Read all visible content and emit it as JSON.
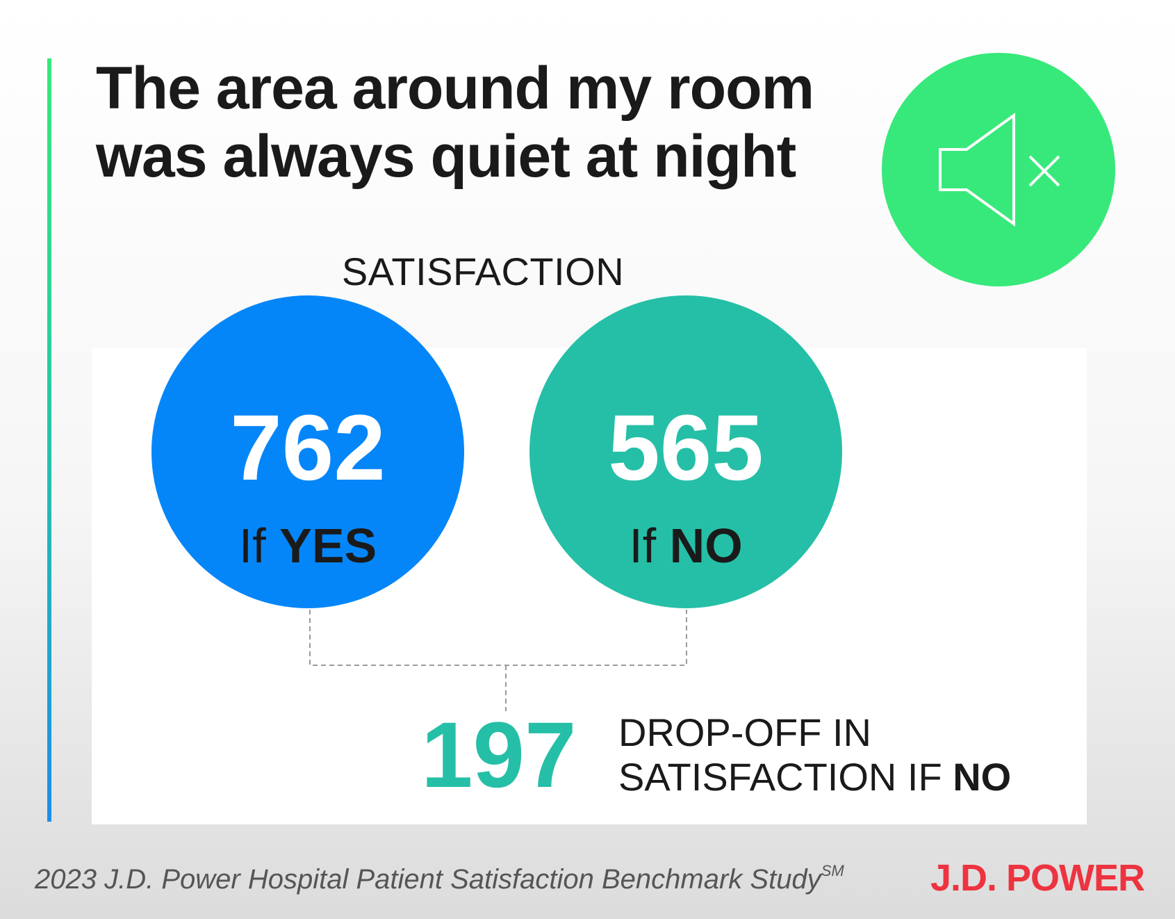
{
  "headline": {
    "line1": "The area around my room",
    "line2": "was always quiet at night"
  },
  "icon": {
    "name": "speaker-muted-icon",
    "color": "#37e97a"
  },
  "satisfaction_label": "SATISFACTION",
  "scores": {
    "yes": {
      "value": "762",
      "prefix": "If",
      "answer": "YES",
      "color": "#0586f8"
    },
    "no": {
      "value": "565",
      "prefix": "If",
      "answer": "NO",
      "color": "#25bfa7"
    }
  },
  "dropoff": {
    "value": "197",
    "line1": "DROP-OFF IN",
    "line2_prefix": "SATISFACTION IF",
    "line2_bold": "NO"
  },
  "footer": {
    "source": "2023 J.D. Power Hospital Patient Satisfaction Benchmark Study",
    "source_mark": "SM",
    "brand": "J.D. POWER",
    "brand_color": "#ee3340"
  }
}
